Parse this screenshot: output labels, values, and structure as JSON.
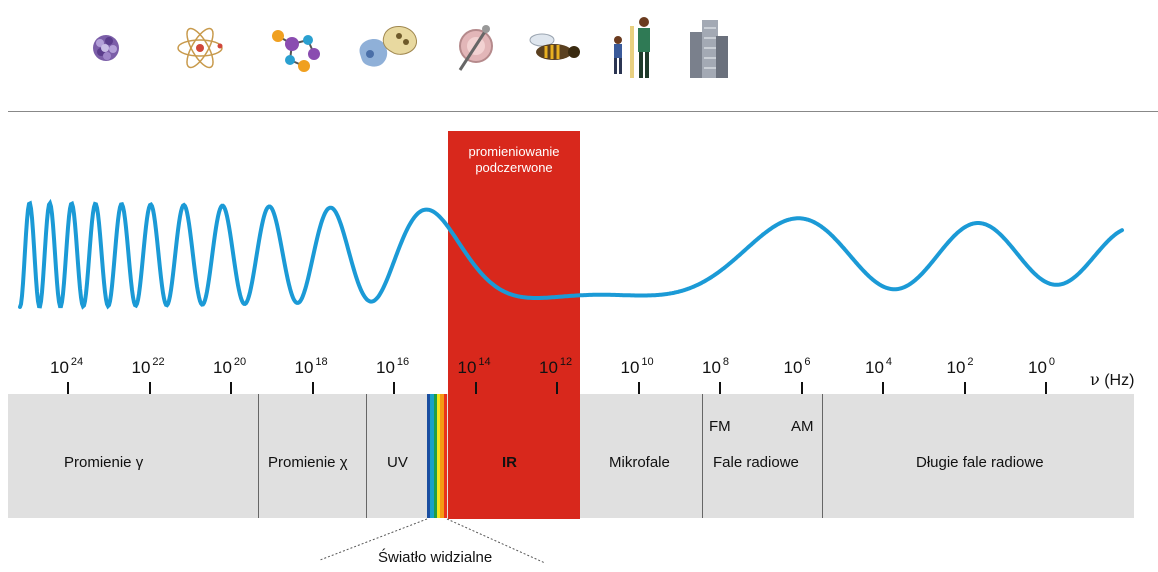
{
  "icons": [
    {
      "name": "atomic-nucleus-icon"
    },
    {
      "name": "atom-icon"
    },
    {
      "name": "molecule-icon"
    },
    {
      "name": "cells-icon"
    },
    {
      "name": "pinhead-icon"
    },
    {
      "name": "bee-icon"
    },
    {
      "name": "people-icon"
    },
    {
      "name": "skyscraper-icon"
    }
  ],
  "ir_band": {
    "caption_line1": "promieniowanie",
    "caption_line2": "podczerwone",
    "color": "#d8281c"
  },
  "frequency_axis": {
    "ticks": [
      {
        "base": "10",
        "exp": "24"
      },
      {
        "base": "10",
        "exp": "22"
      },
      {
        "base": "10",
        "exp": "20"
      },
      {
        "base": "10",
        "exp": "18"
      },
      {
        "base": "10",
        "exp": "16"
      },
      {
        "base": "10",
        "exp": "14"
      },
      {
        "base": "10",
        "exp": "12"
      },
      {
        "base": "10",
        "exp": "10"
      },
      {
        "base": "10",
        "exp": "8"
      },
      {
        "base": "10",
        "exp": "6"
      },
      {
        "base": "10",
        "exp": "4"
      },
      {
        "base": "10",
        "exp": "2"
      },
      {
        "base": "10",
        "exp": "0"
      }
    ],
    "unit_symbol": "ν",
    "unit": "(Hz)"
  },
  "regions": {
    "gamma": "Promienie γ",
    "xray": "Promienie χ",
    "uv": "UV",
    "ir": "IR",
    "microwave": "Mikrofale",
    "radio": "Fale radiowe",
    "fm": "FM",
    "am": "AM",
    "long_radio": "Długie fale radiowe"
  },
  "visible_light": {
    "caption": "Światło widzialne",
    "colors": [
      "#1a4ea0",
      "#16a0c8",
      "#1f9e45",
      "#f4e51a",
      "#f59a14",
      "#e8321c"
    ]
  },
  "wave": {
    "color": "#1b9ad6"
  }
}
